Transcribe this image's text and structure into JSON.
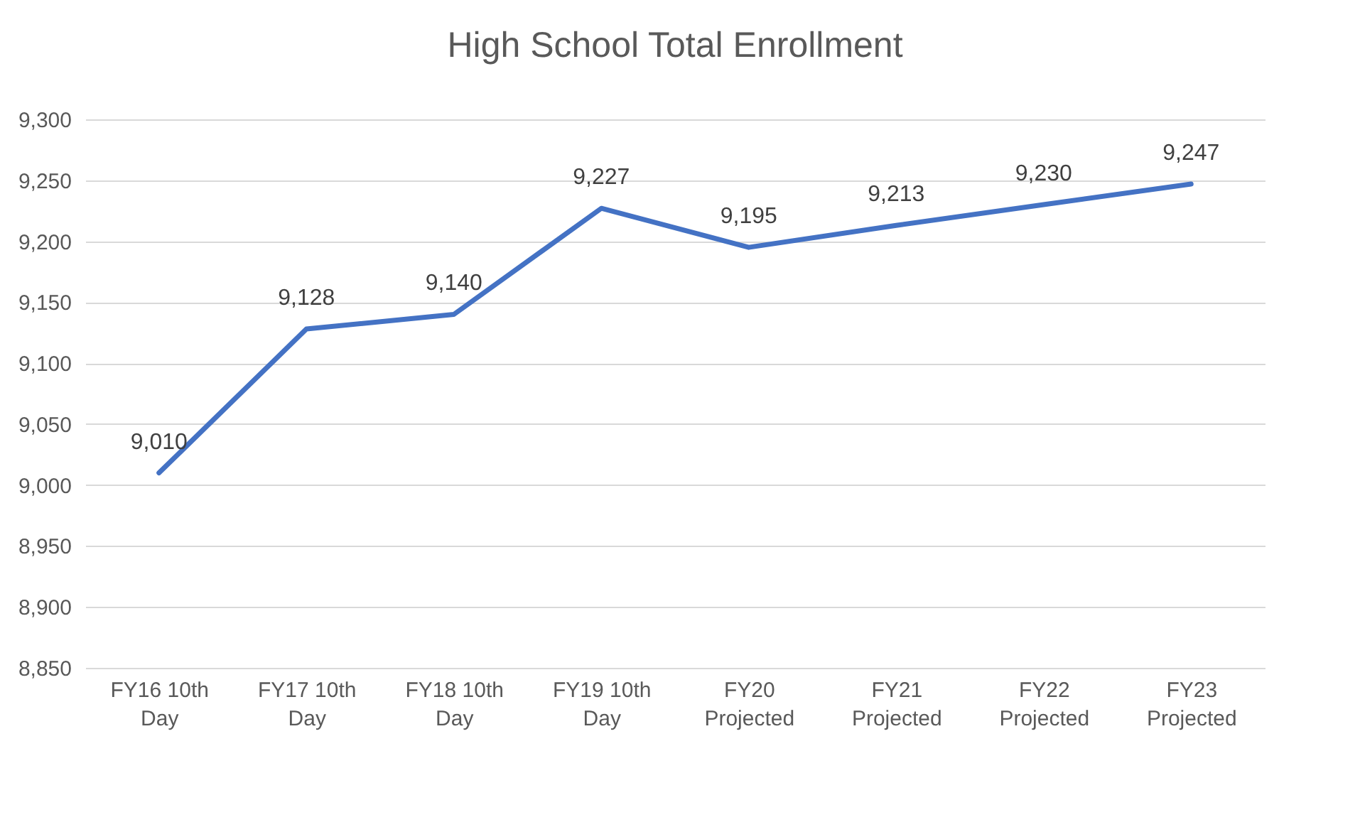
{
  "chart_data": {
    "type": "line",
    "title": "High School Total Enrollment",
    "categories": [
      "FY16 10th Day",
      "FY17 10th Day",
      "FY18 10th Day",
      "FY19 10th Day",
      "FY20 Projected",
      "FY21 Projected",
      "FY22 Projected",
      "FY23 Projected"
    ],
    "values": [
      9010,
      9128,
      9140,
      9227,
      9195,
      9213,
      9230,
      9247
    ],
    "value_labels": [
      "9,010",
      "9,128",
      "9,140",
      "9,227",
      "9,195",
      "9,213",
      "9,230",
      "9,247"
    ],
    "color": "#4472c4",
    "ylim": [
      8850,
      9300
    ],
    "yticks": [
      {
        "value": 8850,
        "label": "8,850"
      },
      {
        "value": 8900,
        "label": "8,900"
      },
      {
        "value": 8950,
        "label": "8,950"
      },
      {
        "value": 9000,
        "label": "9,000"
      },
      {
        "value": 9050,
        "label": "9,050"
      },
      {
        "value": 9100,
        "label": "9,100"
      },
      {
        "value": 9150,
        "label": "9,150"
      },
      {
        "value": 9200,
        "label": "9,200"
      },
      {
        "value": 9250,
        "label": "9,250"
      },
      {
        "value": 9300,
        "label": "9,300"
      }
    ],
    "grid": "y",
    "marker": "none",
    "line_style": "solid"
  }
}
